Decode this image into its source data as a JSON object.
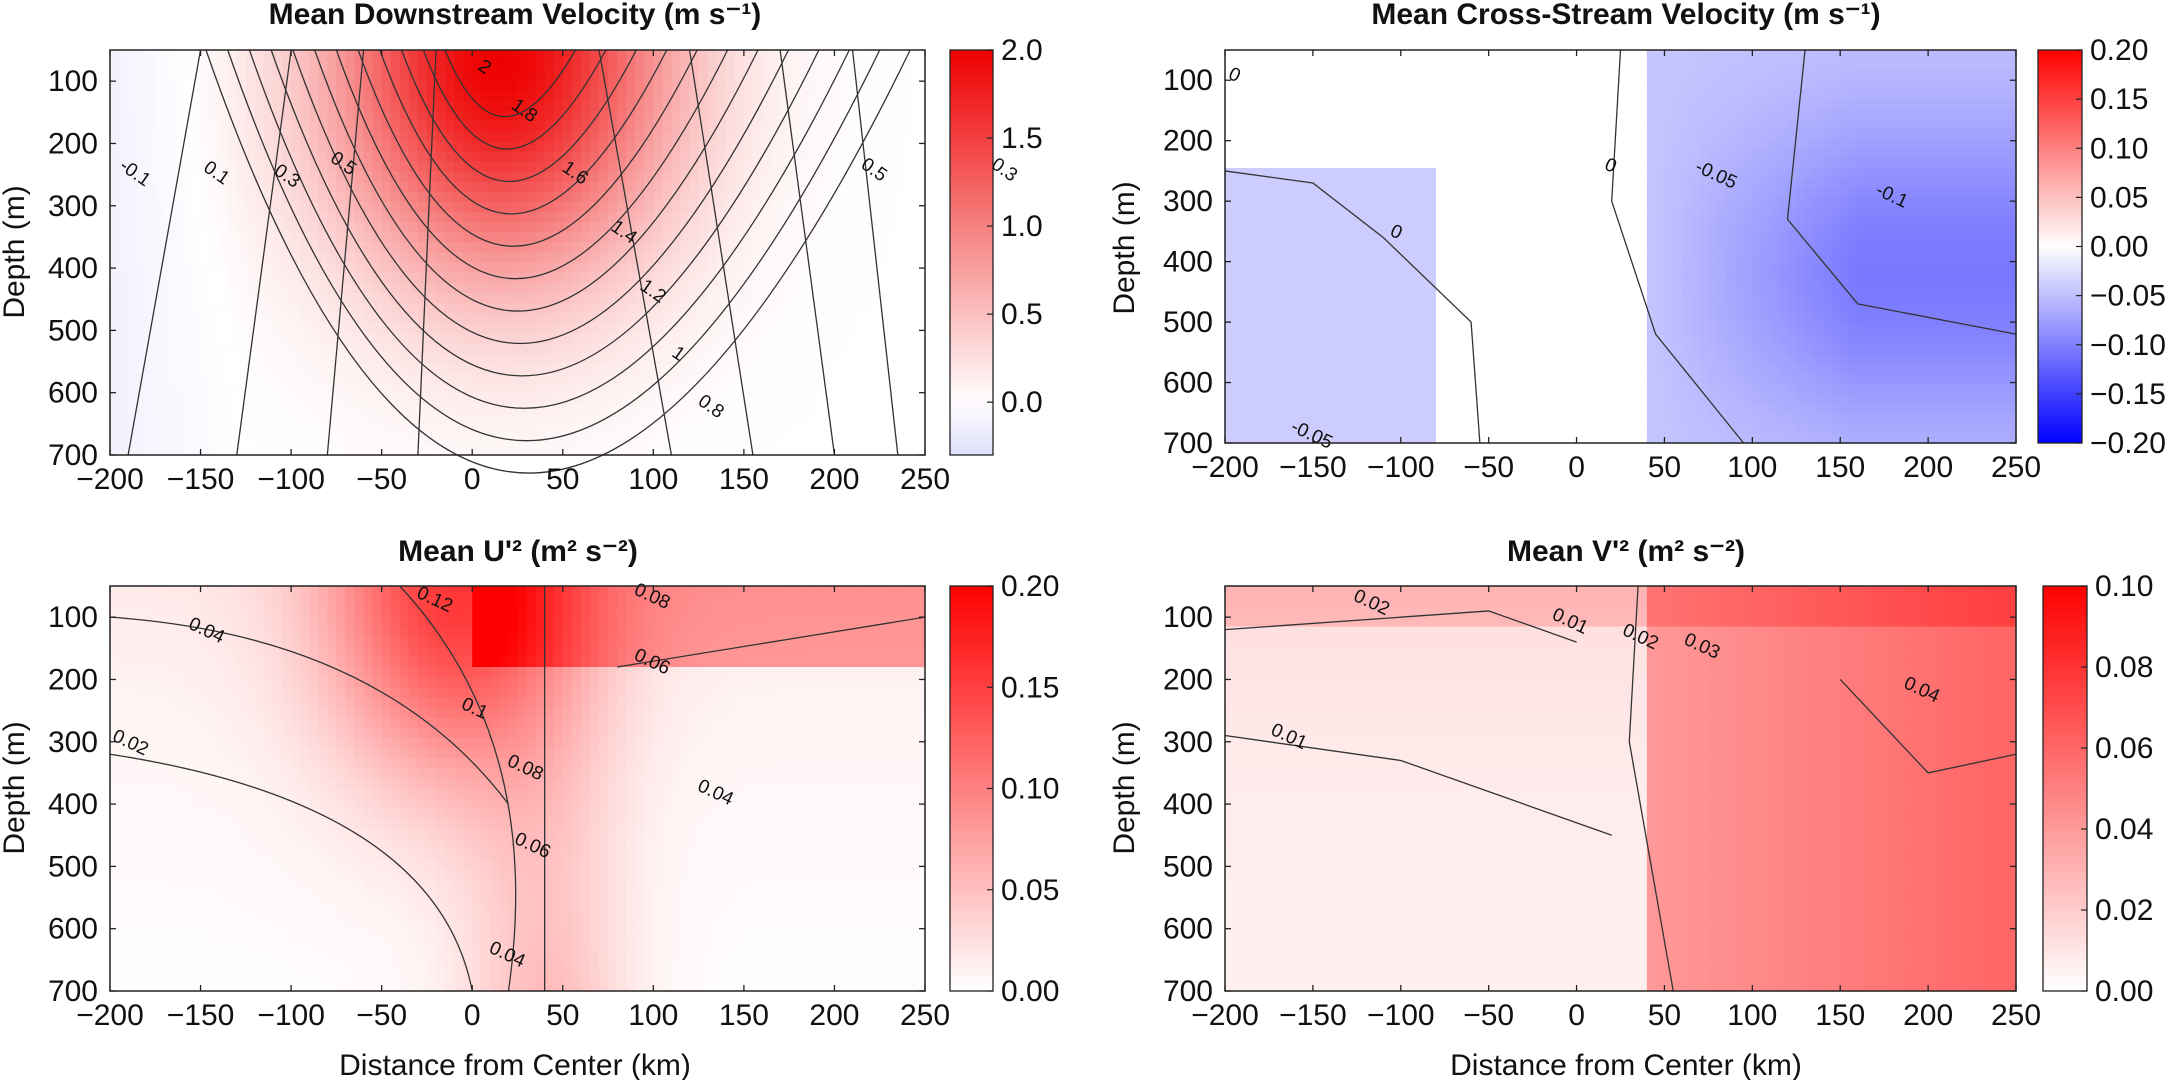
{
  "chart_data": [
    {
      "type": "heatmap",
      "title": "Mean Downstream Velocity (m s⁻¹)",
      "xlabel": "",
      "ylabel": "Depth (m)",
      "xlim": [
        -200,
        250
      ],
      "ylim": [
        50,
        700
      ],
      "y_inverted": true,
      "xticks": [
        "−200",
        "−150",
        "−100",
        "−50",
        "0",
        "50",
        "100",
        "150",
        "200",
        "250"
      ],
      "yticks": [
        "100",
        "200",
        "300",
        "400",
        "500",
        "600",
        "700"
      ],
      "colorbar": {
        "min": -0.3,
        "max": 2.0,
        "ticks": [
          "2.0",
          "1.5",
          "1.0",
          "0.5",
          "0.0"
        ],
        "tick_values": [
          2.0,
          1.5,
          1.0,
          0.5,
          0.0
        ],
        "colors": [
          "#2222ee",
          "#ffffff",
          "#ee0000"
        ],
        "zero": 0
      },
      "contour_labels": [
        {
          "text": "2",
          "x": 5,
          "y": 85
        },
        {
          "text": "1.8",
          "x": 27,
          "y": 155
        },
        {
          "text": "1.6",
          "x": 55,
          "y": 255
        },
        {
          "text": "1.4",
          "x": 82,
          "y": 350
        },
        {
          "text": "1.2",
          "x": 98,
          "y": 445
        },
        {
          "text": "1",
          "x": 112,
          "y": 545
        },
        {
          "text": "0.8",
          "x": 130,
          "y": 630
        },
        {
          "text": "0.5",
          "x": -73,
          "y": 240
        },
        {
          "text": "0.3",
          "x": -104,
          "y": 260
        },
        {
          "text": "0.1",
          "x": -143,
          "y": 255
        },
        {
          "text": "-0.1",
          "x": -188,
          "y": 255
        },
        {
          "text": "0.5",
          "x": 220,
          "y": 250
        },
        {
          "text": "0.3",
          "x": 292,
          "y": 250
        }
      ]
    },
    {
      "type": "heatmap",
      "title": "Mean Cross-Stream Velocity (m s⁻¹)",
      "xlabel": "",
      "ylabel": "Depth (m)",
      "xlim": [
        -200,
        250
      ],
      "ylim": [
        50,
        700
      ],
      "y_inverted": true,
      "xticks": [
        "−200",
        "−150",
        "−100",
        "−50",
        "0",
        "50",
        "100",
        "150",
        "200",
        "250"
      ],
      "yticks": [
        "100",
        "200",
        "300",
        "400",
        "500",
        "600",
        "700"
      ],
      "colorbar": {
        "min": -0.2,
        "max": 0.2,
        "ticks": [
          "0.20",
          "0.15",
          "0.10",
          "0.05",
          "0.00",
          "−0.05",
          "−0.10",
          "−0.15",
          "−0.20"
        ],
        "tick_values": [
          0.2,
          0.15,
          0.1,
          0.05,
          0.0,
          -0.05,
          -0.1,
          -0.15,
          -0.2
        ],
        "colors": [
          "#0000ff",
          "#ffffff",
          "#ff0000"
        ],
        "zero": 0
      },
      "contour_labels": [
        {
          "text": "0",
          "x": -196,
          "y": 100
        },
        {
          "text": "0",
          "x": 18,
          "y": 250
        },
        {
          "text": "-0.05",
          "x": 78,
          "y": 265
        },
        {
          "text": "-0.1",
          "x": 178,
          "y": 300
        },
        {
          "text": "0",
          "x": -104,
          "y": 360
        },
        {
          "text": "-0.05",
          "x": -152,
          "y": 695
        }
      ]
    },
    {
      "type": "heatmap",
      "title": "Mean U'² (m² s⁻²)",
      "xlabel": "Distance from Center (km)",
      "ylabel": "Depth (m)",
      "xlim": [
        -200,
        250
      ],
      "ylim": [
        50,
        700
      ],
      "y_inverted": true,
      "xticks": [
        "−200",
        "−150",
        "−100",
        "−50",
        "0",
        "50",
        "100",
        "150",
        "200",
        "250"
      ],
      "yticks": [
        "100",
        "200",
        "300",
        "400",
        "500",
        "600",
        "700"
      ],
      "colorbar": {
        "min": 0.0,
        "max": 0.2,
        "ticks": [
          "0.20",
          "0.15",
          "0.10",
          "0.05",
          "0.00"
        ],
        "tick_values": [
          0.2,
          0.15,
          0.1,
          0.05,
          0.0
        ],
        "colors": [
          "#ffffff",
          "#ff0000"
        ],
        "zero": 0
      },
      "contour_labels": [
        {
          "text": "0.12",
          "x": -22,
          "y": 80
        },
        {
          "text": "0.08",
          "x": 98,
          "y": 75
        },
        {
          "text": "0.04",
          "x": -148,
          "y": 130
        },
        {
          "text": "0.06",
          "x": 98,
          "y": 180
        },
        {
          "text": "0.1",
          "x": 0,
          "y": 255
        },
        {
          "text": "0.02",
          "x": -190,
          "y": 310
        },
        {
          "text": "0.08",
          "x": 28,
          "y": 350
        },
        {
          "text": "0.04",
          "x": 133,
          "y": 390
        },
        {
          "text": "0.06",
          "x": 32,
          "y": 475
        },
        {
          "text": "0.04",
          "x": 18,
          "y": 650
        }
      ]
    },
    {
      "type": "heatmap",
      "title": "Mean V'² (m² s⁻²)",
      "xlabel": "Distance from Center (km)",
      "ylabel": "Depth (m)",
      "xlim": [
        -200,
        250
      ],
      "ylim": [
        50,
        700
      ],
      "y_inverted": true,
      "xticks": [
        "−200",
        "−150",
        "−100",
        "−50",
        "0",
        "50",
        "100",
        "150",
        "200",
        "250"
      ],
      "yticks": [
        "100",
        "200",
        "300",
        "400",
        "500",
        "600",
        "700"
      ],
      "colorbar": {
        "min": 0.0,
        "max": 0.1,
        "ticks": [
          "0.10",
          "0.08",
          "0.06",
          "0.04",
          "0.02",
          "0.00"
        ],
        "tick_values": [
          0.1,
          0.08,
          0.06,
          0.04,
          0.02,
          0.0
        ],
        "colors": [
          "#ffffff",
          "#ff0000"
        ],
        "zero": 0
      },
      "contour_labels": [
        {
          "text": "0.02",
          "x": -118,
          "y": 85
        },
        {
          "text": "0.01",
          "x": -5,
          "y": 115
        },
        {
          "text": "0.02",
          "x": 35,
          "y": 140
        },
        {
          "text": "0.03",
          "x": 70,
          "y": 155
        },
        {
          "text": "0.04",
          "x": 195,
          "y": 225
        },
        {
          "text": "0.01",
          "x": -165,
          "y": 300
        }
      ]
    }
  ]
}
